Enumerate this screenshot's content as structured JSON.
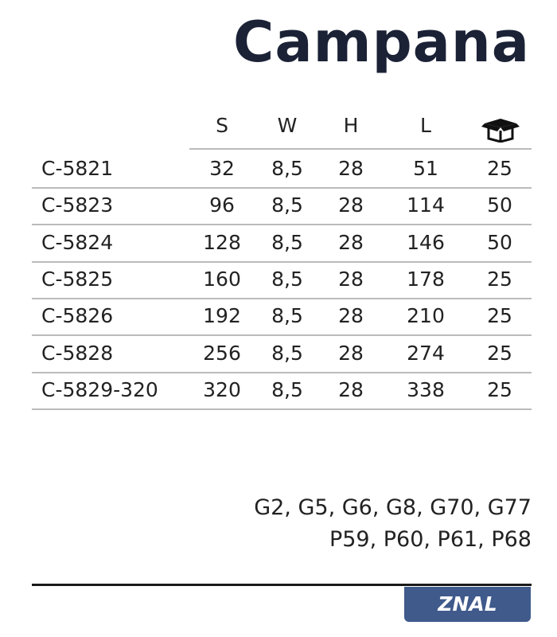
{
  "title": "Campana",
  "headers": [
    "S",
    "W",
    "H",
    "L"
  ],
  "box_icon": "package-box-icon",
  "rows": [
    {
      "code": "C-5821",
      "s": "32",
      "w": "8,5",
      "h": "28",
      "l": "51",
      "qty": "25"
    },
    {
      "code": "C-5823",
      "s": "96",
      "w": "8,5",
      "h": "28",
      "l": "114",
      "qty": "50"
    },
    {
      "code": "C-5824",
      "s": "128",
      "w": "8,5",
      "h": "28",
      "l": "146",
      "qty": "50"
    },
    {
      "code": "C-5825",
      "s": "160",
      "w": "8,5",
      "h": "28",
      "l": "178",
      "qty": "25"
    },
    {
      "code": "C-5826",
      "s": "192",
      "w": "8,5",
      "h": "28",
      "l": "210",
      "qty": "25"
    },
    {
      "code": "C-5828",
      "s": "256",
      "w": "8,5",
      "h": "28",
      "l": "274",
      "qty": "25"
    },
    {
      "code": "C-5829-320",
      "s": "320",
      "w": "8,5",
      "h": "28",
      "l": "338",
      "qty": "25"
    }
  ],
  "finishes": [
    "G2, G5, G6, G8, G70, G77",
    "P59, P60, P61, P68"
  ],
  "badge": "ZNAL",
  "badge_color": "#3f5a8b"
}
